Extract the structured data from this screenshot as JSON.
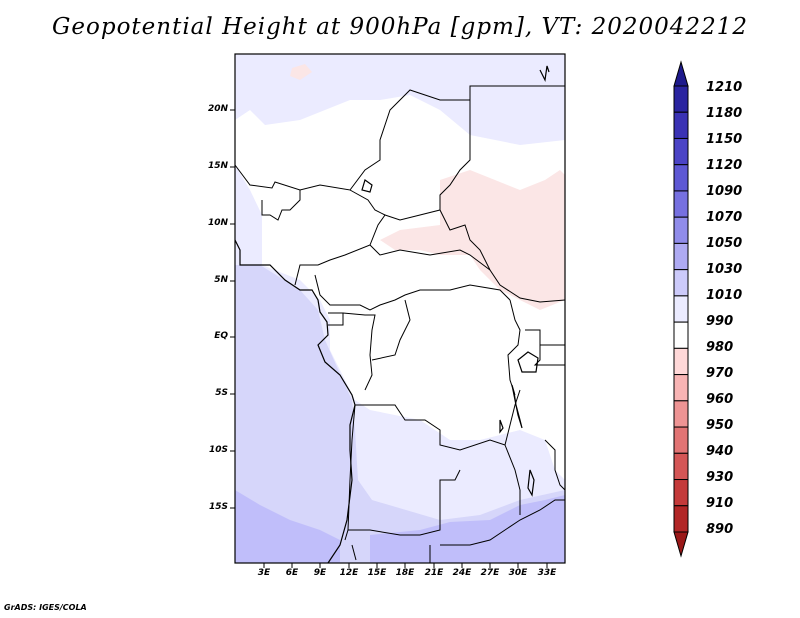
{
  "title": "Geopotential Height at 900hPa [gpm], VT: 2020042212",
  "credit": "GrADS: IGES/COLA",
  "map": {
    "lat_labels": [
      "20N",
      "15N",
      "10N",
      "5N",
      "EQ",
      "5S",
      "10S",
      "15S"
    ],
    "lon_labels": [
      "3E",
      "6E",
      "9E",
      "12E",
      "15E",
      "18E",
      "21E",
      "24E",
      "27E",
      "30E",
      "33E"
    ]
  },
  "colorbar": {
    "levels": [
      "1210",
      "1180",
      "1150",
      "1120",
      "1090",
      "1070",
      "1050",
      "1030",
      "1010",
      "990",
      "980",
      "970",
      "960",
      "950",
      "940",
      "930",
      "910",
      "890"
    ],
    "colors": [
      "#1e1a8c",
      "#2a24a0",
      "#3a32b4",
      "#4b44c6",
      "#5e58d4",
      "#7670e0",
      "#908cea",
      "#aeaaf2",
      "#cccafa",
      "#ebebff",
      "#ffffff",
      "#ffd8d8",
      "#f8b4b4",
      "#ee9494",
      "#e27474",
      "#d45656",
      "#c43a3a",
      "#b22626",
      "#9a1818"
    ]
  },
  "fill_colors": {
    "white": "#ffffff",
    "very_light_blue": "#ebebff",
    "light_blue": "#d6d6fa",
    "lavender": "#c0befa",
    "light_pink": "#fbe6e6"
  }
}
